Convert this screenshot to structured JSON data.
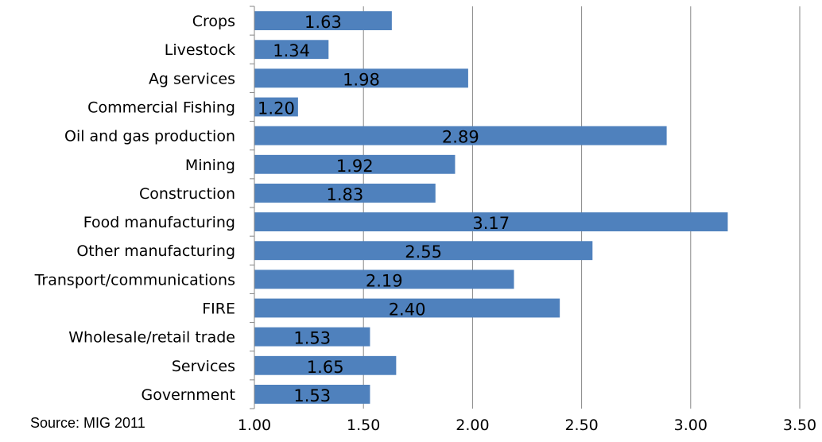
{
  "source": "Source: MIG 2011",
  "chart_data": {
    "type": "bar",
    "orientation": "horizontal",
    "categories": [
      "Crops",
      "Livestock",
      "Ag services",
      "Commercial Fishing",
      "Oil and gas production",
      "Mining",
      "Construction",
      "Food manufacturing",
      "Other manufacturing",
      "Transport/communications",
      "FIRE",
      "Wholesale/retail trade",
      "Services",
      "Government"
    ],
    "values": [
      1.63,
      1.34,
      1.98,
      1.2,
      2.89,
      1.92,
      1.83,
      3.17,
      2.55,
      2.19,
      2.4,
      1.53,
      1.65,
      1.53
    ],
    "data_labels": [
      "1.63",
      "1.34",
      "1.98",
      "1.20",
      "2.89",
      "1.92",
      "1.83",
      "3.17",
      "2.55",
      "2.19",
      "2.40",
      "1.53",
      "1.65",
      "1.53"
    ],
    "xlim": [
      1.0,
      3.5
    ],
    "x_ticks": [
      "1.00",
      "1.50",
      "2.00",
      "2.50",
      "3.00",
      "3.50"
    ],
    "x_tick_values": [
      1.0,
      1.5,
      2.0,
      2.5,
      3.0,
      3.5
    ],
    "grid": "vertical",
    "bar_color": "#4F81BD",
    "grid_color": "#868686",
    "title": "",
    "xlabel": "",
    "ylabel": ""
  }
}
